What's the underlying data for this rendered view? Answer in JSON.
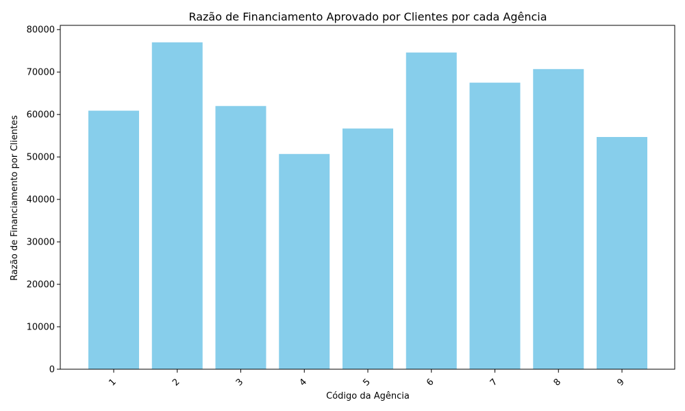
{
  "chart_data": {
    "type": "bar",
    "title": "Razão de Financiamento Aprovado por Clientes por cada Agência",
    "xlabel": "Código da Agência",
    "ylabel": "Razão de Financiamento por Clientes",
    "categories": [
      "1",
      "2",
      "3",
      "4",
      "5",
      "6",
      "7",
      "8",
      "9"
    ],
    "values": [
      60900,
      77000,
      62000,
      50700,
      56700,
      74600,
      67500,
      70700,
      54700
    ],
    "ylim": [
      0,
      81000
    ],
    "yticks": [
      0,
      10000,
      20000,
      30000,
      40000,
      50000,
      60000,
      70000,
      80000
    ],
    "ytick_labels": [
      "0",
      "10000",
      "20000",
      "30000",
      "40000",
      "50000",
      "60000",
      "70000",
      "80000"
    ],
    "x_tick_rotation": 45,
    "bar_color": "#87ceeb",
    "grid": false,
    "legend": false
  }
}
